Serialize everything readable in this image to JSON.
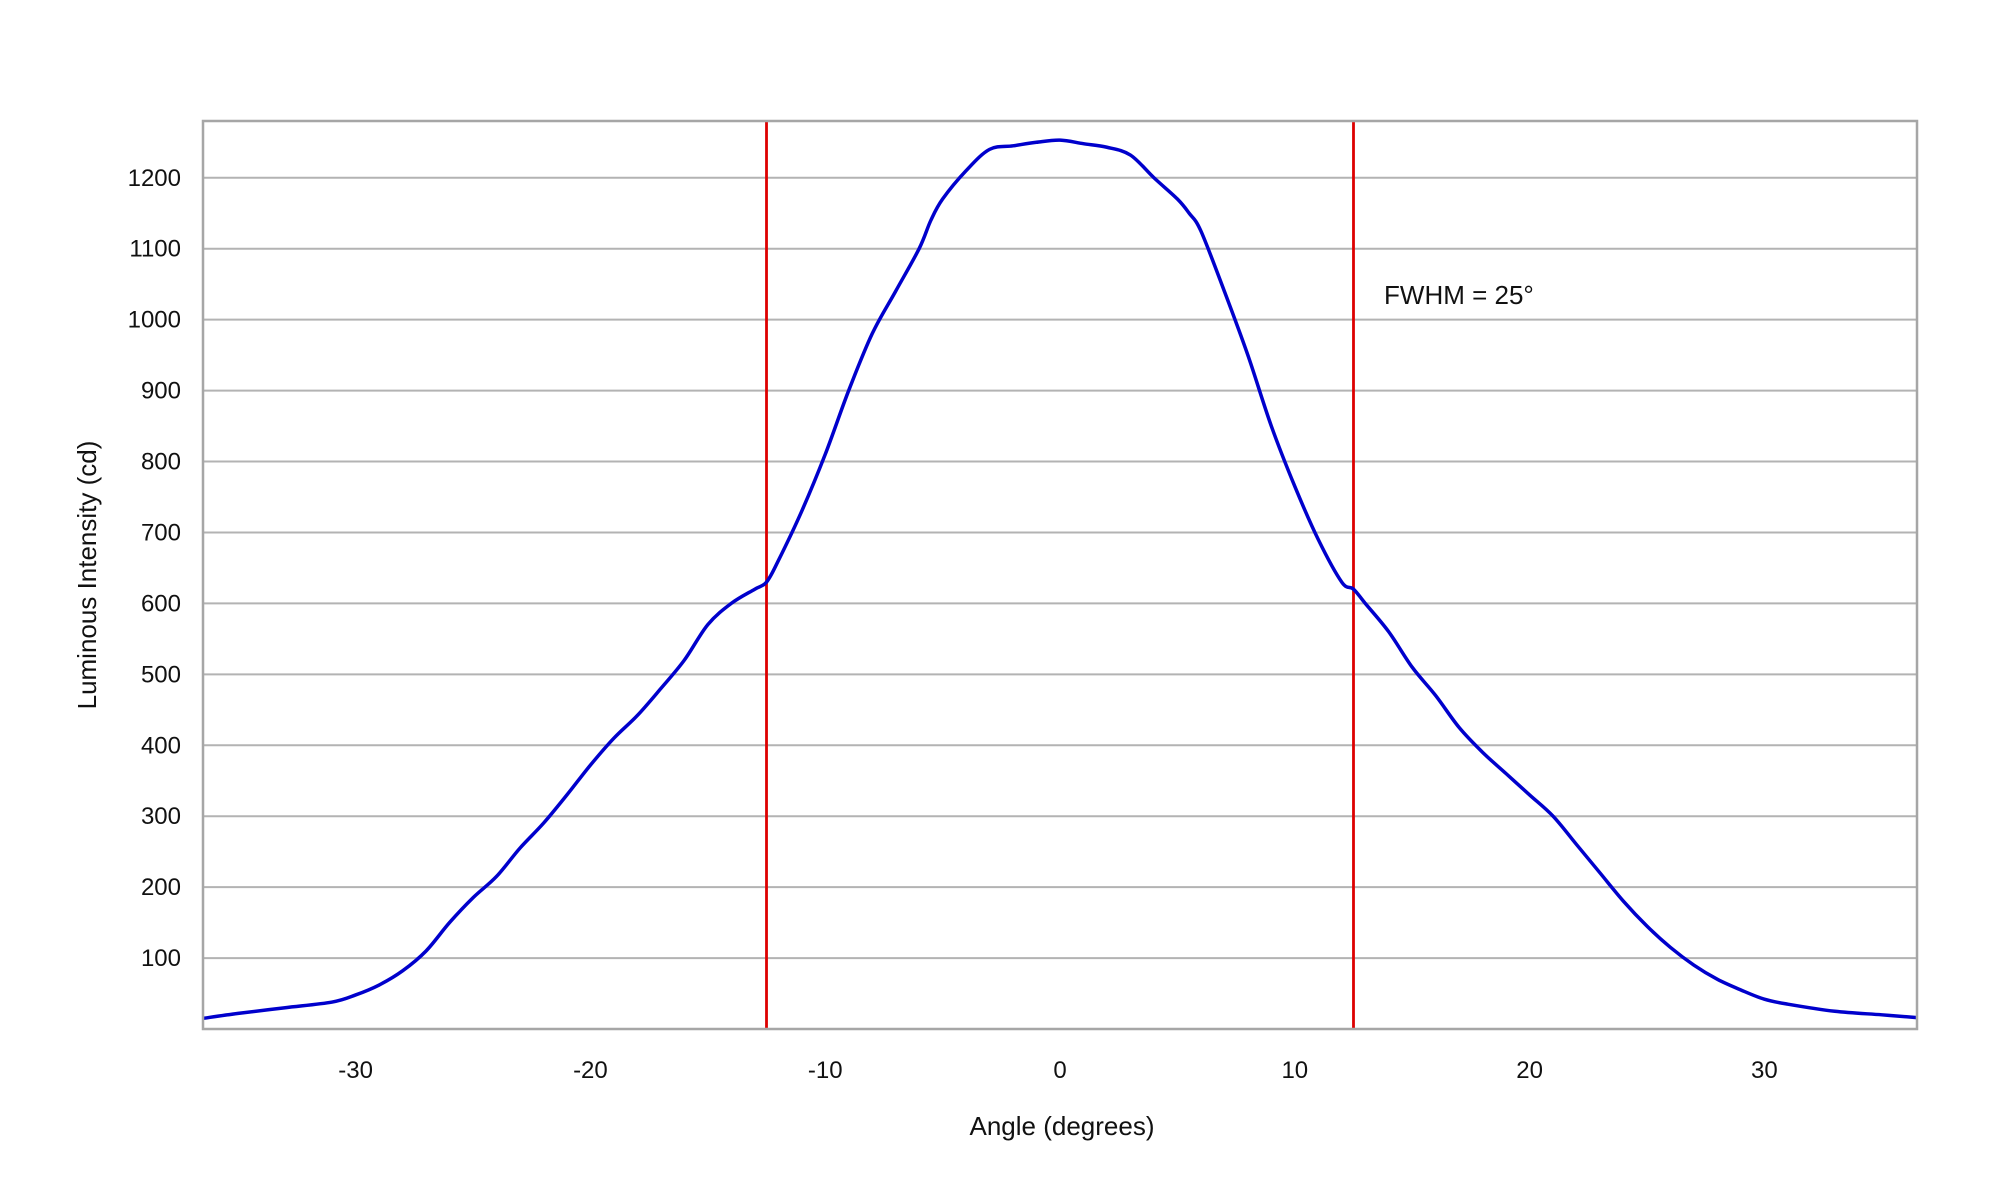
{
  "chart_data": {
    "type": "line",
    "title": "",
    "xlabel": "Angle (degrees)",
    "ylabel": "Luminous Intensity (cd)",
    "xlim": [
      -36.5,
      36.5
    ],
    "ylim": [
      0,
      1280
    ],
    "x_ticks": [
      -30,
      -20,
      -10,
      0,
      10,
      20,
      30
    ],
    "y_ticks": [
      100,
      200,
      300,
      400,
      500,
      600,
      700,
      800,
      900,
      1000,
      1100,
      1200
    ],
    "grid": {
      "horizontal": true,
      "vertical": false
    },
    "legend": "none",
    "series": [
      {
        "color": "#0000cc",
        "x": [
          -36.5,
          -35,
          -33,
          -31,
          -30,
          -29,
          -28,
          -27,
          -26,
          -25,
          -24,
          -23,
          -22,
          -21,
          -20,
          -19,
          -18,
          -17,
          -16,
          -15,
          -14,
          -13,
          -12.5,
          -12,
          -11,
          -10,
          -9,
          -8,
          -7,
          -6,
          -5.5,
          -5,
          -4,
          -3,
          -2,
          -1,
          0,
          1,
          2,
          3,
          4,
          5,
          5.5,
          6,
          7,
          8,
          9,
          10,
          11,
          12,
          12.5,
          13,
          14,
          15,
          16,
          17,
          18,
          19,
          20,
          21,
          22,
          23,
          24,
          25,
          26,
          27,
          28,
          29,
          30,
          31,
          33,
          35,
          36.5
        ],
        "y": [
          15,
          22,
          30,
          38,
          48,
          62,
          82,
          110,
          150,
          185,
          215,
          255,
          290,
          330,
          372,
          410,
          442,
          480,
          520,
          570,
          600,
          620,
          630,
          660,
          730,
          810,
          900,
          980,
          1040,
          1100,
          1140,
          1170,
          1210,
          1240,
          1245,
          1250,
          1253,
          1248,
          1243,
          1232,
          1200,
          1170,
          1150,
          1125,
          1040,
          950,
          850,
          765,
          690,
          630,
          620,
          600,
          560,
          510,
          470,
          425,
          390,
          360,
          330,
          300,
          260,
          220,
          180,
          145,
          115,
          90,
          70,
          55,
          42,
          35,
          25,
          20,
          16
        ]
      }
    ],
    "reference_lines": [
      {
        "x": -12.5,
        "color": "#dd0000"
      },
      {
        "x": 12.5,
        "color": "#dd0000"
      }
    ],
    "annotations": [
      {
        "text": "FWHM = 25°",
        "x": 13.8,
        "y": 1035
      }
    ]
  }
}
